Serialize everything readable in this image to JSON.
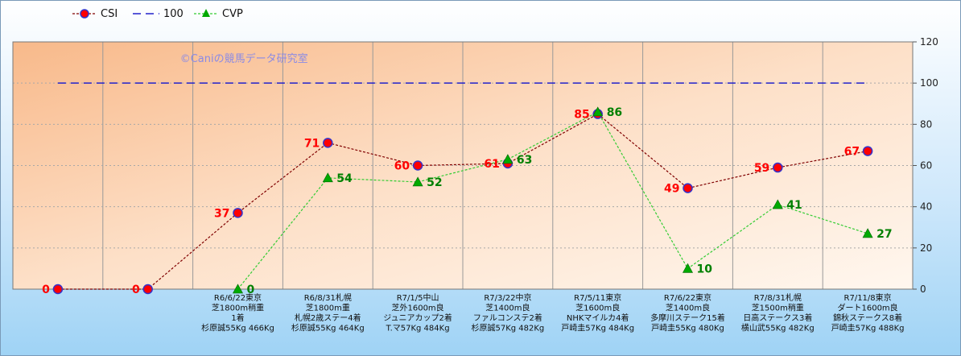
{
  "watermark": "©Caniの競馬データ研究室",
  "colors": {
    "csi_line": "#800000",
    "csi_marker": "#ff0000",
    "csi_marker_edge": "#3333cc",
    "csi_label": "#ff0000",
    "ref_line": "#2222cc",
    "cvp_line": "#33cc33",
    "cvp_marker": "#00aa00",
    "cvp_label": "#008000"
  },
  "chart_data": {
    "type": "line",
    "title": "",
    "xlabel": "",
    "ylabel": "",
    "ylim": [
      0,
      120
    ],
    "yticks": [
      0,
      20,
      40,
      60,
      80,
      100,
      120
    ],
    "y_axis_side": "right",
    "grid": true,
    "legend_position": "top-left",
    "categories": [
      [],
      [],
      [
        "R6/6/22東京",
        "芝1800m稍重",
        "1着",
        "杉原誠55Kg 466Kg"
      ],
      [
        "R6/8/31札幌",
        "芝1800m重",
        "札幌2歳ステー4着",
        "杉原誠55Kg 464Kg"
      ],
      [
        "R7/1/5中山",
        "芝外1600m良",
        "ジュニアカップ2着",
        "T.マ57Kg 484Kg"
      ],
      [
        "R7/3/22中京",
        "芝1400m良",
        "ファルコンステ2着",
        "杉原誠57Kg 482Kg"
      ],
      [
        "R7/5/11東京",
        "芝1600m良",
        "NHKマイルカ4着",
        "戸崎圭57Kg 484Kg"
      ],
      [
        "R7/6/22東京",
        "芝1400m良",
        "多摩川ステーク15着",
        "戸崎圭55Kg 480Kg"
      ],
      [
        "R7/8/31札幌",
        "芝1500m稍重",
        "日高ステークス3着",
        "横山武55Kg 482Kg"
      ],
      [
        "R7/11/8東京",
        "ダート1600m良",
        "錦秋ステークス8着",
        "戸崎圭57Kg 488Kg"
      ]
    ],
    "series": [
      {
        "name": "CSI",
        "values": [
          0,
          0,
          37,
          71,
          60,
          61,
          85,
          49,
          59,
          67
        ]
      },
      {
        "name": "100",
        "values": [
          100,
          100,
          100,
          100,
          100,
          100,
          100,
          100,
          100,
          100
        ]
      },
      {
        "name": "CVP",
        "values": [
          null,
          null,
          0,
          54,
          52,
          63,
          86,
          10,
          41,
          27
        ]
      }
    ]
  }
}
